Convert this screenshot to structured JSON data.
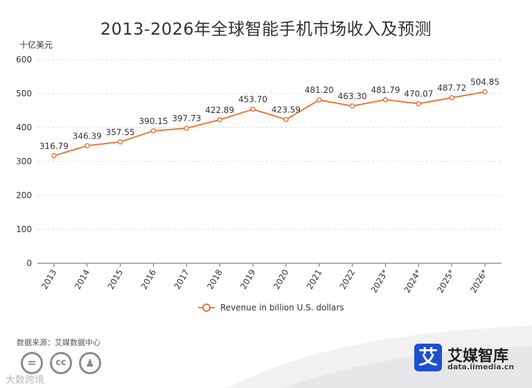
{
  "page": {
    "title": "2013-2026年全球智能手机市场收入及预测",
    "unit_label": "十亿美元",
    "source": "数据来源：艾媒数据中心",
    "watermark_text": "大数跨境",
    "cc_icons": [
      "equals-icon",
      "cc-icon",
      "person-icon"
    ],
    "brand": {
      "logo_char": "艾",
      "name": "艾媒智库",
      "url": "data.iimedia.cn"
    }
  },
  "chart_data": {
    "type": "line",
    "categories": [
      "2013",
      "2014",
      "2015",
      "2016",
      "2017",
      "2018",
      "2019",
      "2020",
      "2021",
      "2022",
      "2023*",
      "2024*",
      "2025*",
      "2026*"
    ],
    "series": [
      {
        "name": "Revenue in billion U.S. dollars",
        "values": [
          316.79,
          346.39,
          357.55,
          390.15,
          397.73,
          422.89,
          453.7,
          423.59,
          481.2,
          463.3,
          481.79,
          470.07,
          487.72,
          504.85
        ],
        "labels": [
          "316.79",
          "346.39",
          "357.55",
          "390.15",
          "397.73",
          "422.89",
          "453.70",
          "423.59",
          "481.20",
          "463.30",
          "481.79",
          "470.07",
          "487.72",
          "504.85"
        ]
      }
    ],
    "yticks": [
      0,
      100,
      200,
      300,
      400,
      500,
      600
    ],
    "ylim": [
      0,
      600
    ],
    "grid": true,
    "legend_position": "bottom-center",
    "color": "#e8783a"
  }
}
